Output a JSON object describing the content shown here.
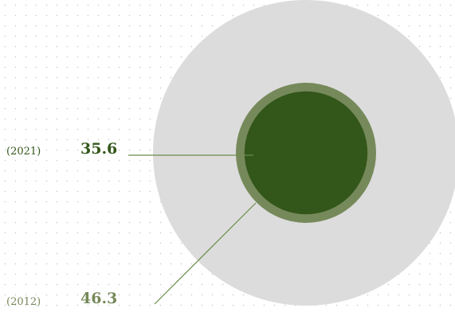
{
  "chart_data": {
    "type": "nested-circle",
    "series": [
      {
        "year_label": "(2021)",
        "value": 35.6,
        "value_label": "35.6",
        "color": "#33561a"
      },
      {
        "year_label": "(2012)",
        "value": 46.3,
        "value_label": "46.3",
        "color": "#76895a"
      }
    ],
    "background_circle_color": "#dcdcdc",
    "dot_grid_color": "#c8c8c8",
    "leader_line_color": "#6c8a4c",
    "label_color_2021": "#33561a",
    "label_color_2012": "#76895a"
  }
}
